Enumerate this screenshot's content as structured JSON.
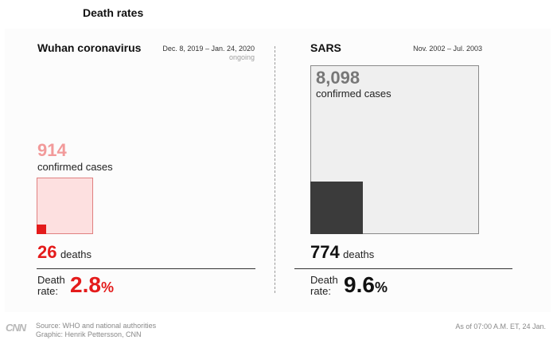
{
  "page": {
    "title": "Death rates"
  },
  "colors": {
    "covid_accent": "#e41b1b",
    "covid_light_fill": "#fde0e0",
    "covid_light_border": "#e08080",
    "covid_number_light": "#f29a9a",
    "sars_dark": "#3b3b3b",
    "sars_light_fill": "#efefef",
    "sars_border": "#8a8a8a",
    "sars_number_grey": "#777777"
  },
  "chart_data": [
    {
      "type": "area-square-comparison",
      "title": "Wuhan coronavirus",
      "date_range": "Dec. 8, 2019 – Jan. 24, 2020",
      "status": "ongoing",
      "confirmed_cases": 914,
      "confirmed_cases_display": "914",
      "confirmed_cases_label": "confirmed cases",
      "deaths": 26,
      "deaths_display": "26",
      "deaths_label": "deaths",
      "death_rate_label_line1": "Death",
      "death_rate_label_line2": "rate:",
      "death_rate": 2.8,
      "death_rate_display": "2.8",
      "death_rate_unit": "%"
    },
    {
      "type": "area-square-comparison",
      "title": "SARS",
      "date_range": "Nov. 2002 – Jul. 2003",
      "confirmed_cases": 8098,
      "confirmed_cases_display": "8,098",
      "confirmed_cases_label": "confirmed cases",
      "deaths": 774,
      "deaths_display": "774",
      "deaths_label": "deaths",
      "death_rate_label_line1": "Death",
      "death_rate_label_line2": "rate:",
      "death_rate": 9.6,
      "death_rate_display": "9.6",
      "death_rate_unit": "%"
    }
  ],
  "footer": {
    "logo": "CNN",
    "source": "Source: WHO and national authorities",
    "graphic": "Graphic: Henrik Pettersson, CNN",
    "as_of": "As of 07:00 A.M. ET, 24 Jan."
  }
}
